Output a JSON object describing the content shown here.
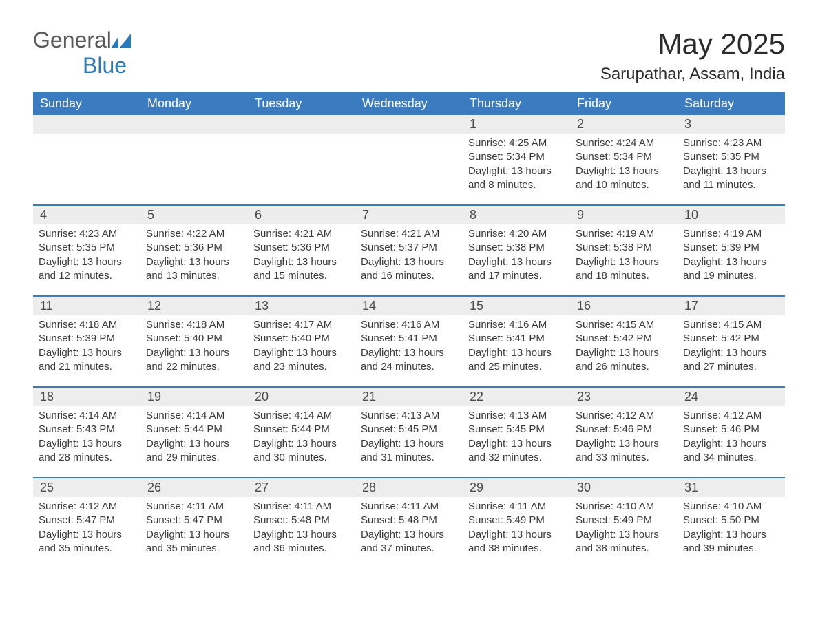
{
  "logo": {
    "text1": "General",
    "text2": "Blue"
  },
  "title": "May 2025",
  "location": "Sarupathar, Assam, India",
  "colors": {
    "header_bg": "#3b7bbf",
    "header_text": "#ffffff",
    "daynum_bg": "#ededed",
    "border": "#3b7bbf",
    "text": "#3a3a3a",
    "logo_gray": "#5a5a5a",
    "logo_blue": "#2a7ab8"
  },
  "weekdays": [
    "Sunday",
    "Monday",
    "Tuesday",
    "Wednesday",
    "Thursday",
    "Friday",
    "Saturday"
  ],
  "weeks": [
    [
      null,
      null,
      null,
      null,
      {
        "n": "1",
        "sr": "4:25 AM",
        "ss": "5:34 PM",
        "dl": "13 hours and 8 minutes."
      },
      {
        "n": "2",
        "sr": "4:24 AM",
        "ss": "5:34 PM",
        "dl": "13 hours and 10 minutes."
      },
      {
        "n": "3",
        "sr": "4:23 AM",
        "ss": "5:35 PM",
        "dl": "13 hours and 11 minutes."
      }
    ],
    [
      {
        "n": "4",
        "sr": "4:23 AM",
        "ss": "5:35 PM",
        "dl": "13 hours and 12 minutes."
      },
      {
        "n": "5",
        "sr": "4:22 AM",
        "ss": "5:36 PM",
        "dl": "13 hours and 13 minutes."
      },
      {
        "n": "6",
        "sr": "4:21 AM",
        "ss": "5:36 PM",
        "dl": "13 hours and 15 minutes."
      },
      {
        "n": "7",
        "sr": "4:21 AM",
        "ss": "5:37 PM",
        "dl": "13 hours and 16 minutes."
      },
      {
        "n": "8",
        "sr": "4:20 AM",
        "ss": "5:38 PM",
        "dl": "13 hours and 17 minutes."
      },
      {
        "n": "9",
        "sr": "4:19 AM",
        "ss": "5:38 PM",
        "dl": "13 hours and 18 minutes."
      },
      {
        "n": "10",
        "sr": "4:19 AM",
        "ss": "5:39 PM",
        "dl": "13 hours and 19 minutes."
      }
    ],
    [
      {
        "n": "11",
        "sr": "4:18 AM",
        "ss": "5:39 PM",
        "dl": "13 hours and 21 minutes."
      },
      {
        "n": "12",
        "sr": "4:18 AM",
        "ss": "5:40 PM",
        "dl": "13 hours and 22 minutes."
      },
      {
        "n": "13",
        "sr": "4:17 AM",
        "ss": "5:40 PM",
        "dl": "13 hours and 23 minutes."
      },
      {
        "n": "14",
        "sr": "4:16 AM",
        "ss": "5:41 PM",
        "dl": "13 hours and 24 minutes."
      },
      {
        "n": "15",
        "sr": "4:16 AM",
        "ss": "5:41 PM",
        "dl": "13 hours and 25 minutes."
      },
      {
        "n": "16",
        "sr": "4:15 AM",
        "ss": "5:42 PM",
        "dl": "13 hours and 26 minutes."
      },
      {
        "n": "17",
        "sr": "4:15 AM",
        "ss": "5:42 PM",
        "dl": "13 hours and 27 minutes."
      }
    ],
    [
      {
        "n": "18",
        "sr": "4:14 AM",
        "ss": "5:43 PM",
        "dl": "13 hours and 28 minutes."
      },
      {
        "n": "19",
        "sr": "4:14 AM",
        "ss": "5:44 PM",
        "dl": "13 hours and 29 minutes."
      },
      {
        "n": "20",
        "sr": "4:14 AM",
        "ss": "5:44 PM",
        "dl": "13 hours and 30 minutes."
      },
      {
        "n": "21",
        "sr": "4:13 AM",
        "ss": "5:45 PM",
        "dl": "13 hours and 31 minutes."
      },
      {
        "n": "22",
        "sr": "4:13 AM",
        "ss": "5:45 PM",
        "dl": "13 hours and 32 minutes."
      },
      {
        "n": "23",
        "sr": "4:12 AM",
        "ss": "5:46 PM",
        "dl": "13 hours and 33 minutes."
      },
      {
        "n": "24",
        "sr": "4:12 AM",
        "ss": "5:46 PM",
        "dl": "13 hours and 34 minutes."
      }
    ],
    [
      {
        "n": "25",
        "sr": "4:12 AM",
        "ss": "5:47 PM",
        "dl": "13 hours and 35 minutes."
      },
      {
        "n": "26",
        "sr": "4:11 AM",
        "ss": "5:47 PM",
        "dl": "13 hours and 35 minutes."
      },
      {
        "n": "27",
        "sr": "4:11 AM",
        "ss": "5:48 PM",
        "dl": "13 hours and 36 minutes."
      },
      {
        "n": "28",
        "sr": "4:11 AM",
        "ss": "5:48 PM",
        "dl": "13 hours and 37 minutes."
      },
      {
        "n": "29",
        "sr": "4:11 AM",
        "ss": "5:49 PM",
        "dl": "13 hours and 38 minutes."
      },
      {
        "n": "30",
        "sr": "4:10 AM",
        "ss": "5:49 PM",
        "dl": "13 hours and 38 minutes."
      },
      {
        "n": "31",
        "sr": "4:10 AM",
        "ss": "5:50 PM",
        "dl": "13 hours and 39 minutes."
      }
    ]
  ],
  "labels": {
    "sunrise": "Sunrise: ",
    "sunset": "Sunset: ",
    "daylight": "Daylight: "
  }
}
